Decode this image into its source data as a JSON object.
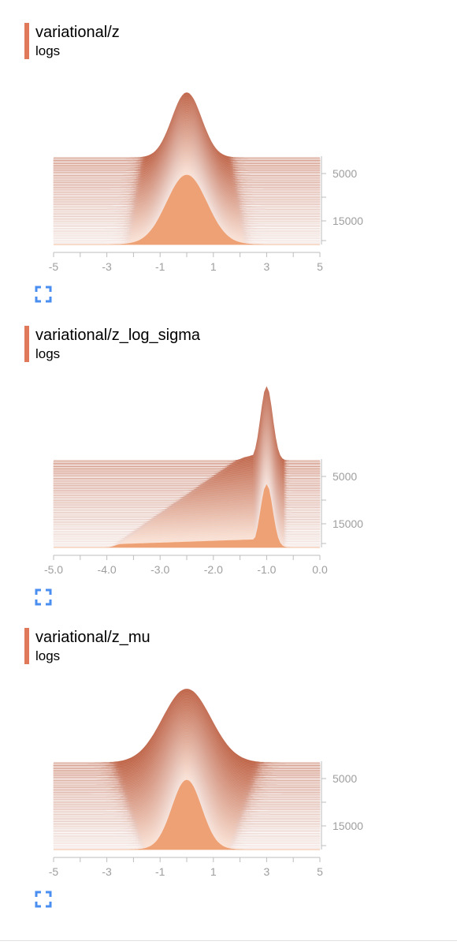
{
  "colors": {
    "accent": "#e0785a",
    "fill": "#eea175",
    "dark": "#b34a2a",
    "light": "#fde0cf",
    "axis": "#bdbdbd",
    "icon": "#4a8ef0"
  },
  "icons": {
    "expand": "expand-icon"
  },
  "charts": [
    {
      "title": "variational/z",
      "subtitle": "logs",
      "chart_data": {
        "type": "ridgeline",
        "xlim": [
          -5,
          5
        ],
        "x_ticks": [
          "-5",
          "-3",
          "-1",
          "1",
          "3",
          "5"
        ],
        "y_ticks": [
          "5000",
          "15000"
        ],
        "step_range": [
          0,
          20000
        ],
        "distribution": "gaussian",
        "center": 0.0,
        "spread_start": 0.55,
        "spread_end": 0.75,
        "peak_height_start": 0.75,
        "peak_height_end": 0.8
      }
    },
    {
      "title": "variational/z_log_sigma",
      "subtitle": "logs",
      "chart_data": {
        "type": "ridgeline",
        "xlim": [
          -5.0,
          0.5
        ],
        "x_ticks": [
          "-5.0",
          "-4.0",
          "-3.0",
          "-2.0",
          "-1.0",
          "0.0"
        ],
        "y_ticks": [
          "5000",
          "15000"
        ],
        "step_range": [
          0,
          20000
        ],
        "distribution": "skewed",
        "center": -0.6,
        "spread_start": 0.12,
        "spread_end": 0.12,
        "tail_start": -1.0,
        "tail_end": -3.6,
        "peak_height_start": 0.85,
        "peak_height_end": 0.72
      }
    },
    {
      "title": "variational/z_mu",
      "subtitle": "logs",
      "chart_data": {
        "type": "ridgeline",
        "xlim": [
          -5,
          5
        ],
        "x_ticks": [
          "-5",
          "-3",
          "-1",
          "1",
          "3",
          "5"
        ],
        "y_ticks": [
          "5000",
          "15000"
        ],
        "step_range": [
          0,
          20000
        ],
        "distribution": "gaussian",
        "center": 0.0,
        "spread_start": 0.9,
        "spread_end": 0.55,
        "peak_height_start": 0.85,
        "peak_height_end": 0.8
      }
    }
  ]
}
